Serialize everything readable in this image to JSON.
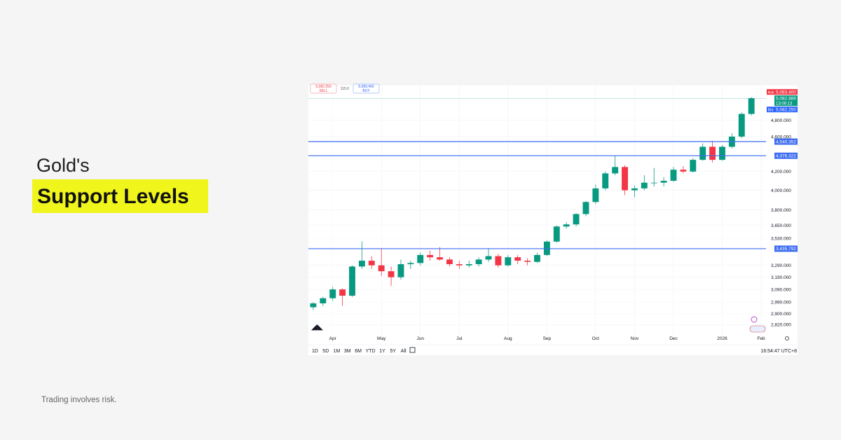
{
  "headline": {
    "line1": "Gold's",
    "line2": "Support Levels"
  },
  "disclaimer": "Trading involves risk.",
  "trade_panel": {
    "sell_price": "5,082.250",
    "sell": "SELL",
    "spread": "115.0",
    "buy_price": "5,083.400",
    "buy": "BUY"
  },
  "toolbar": {
    "ranges": [
      "1D",
      "5D",
      "1M",
      "3M",
      "6M",
      "YTD",
      "1Y",
      "5Y",
      "All"
    ],
    "clock": "16:54:47 UTC+8"
  },
  "chart_data": {
    "type": "candlestick",
    "categories": [
      null,
      null,
      "Apr",
      null,
      null,
      null,
      null,
      "May",
      null,
      null,
      null,
      "Jun",
      null,
      null,
      null,
      "Jul",
      null,
      null,
      null,
      null,
      "Aug",
      null,
      null,
      null,
      "Sep",
      null,
      null,
      null,
      null,
      "Oct",
      null,
      null,
      null,
      "Nov",
      null,
      null,
      null,
      "Dec",
      null,
      null,
      null,
      null,
      "2026",
      null,
      null,
      null,
      "Feb"
    ],
    "open": [
      2950,
      2980,
      3020,
      3090,
      3040,
      3280,
      3330,
      3290,
      3240,
      3190,
      3300,
      3310,
      3380,
      3360,
      3340,
      3300,
      3290,
      3300,
      3340,
      3370,
      3290,
      3360,
      3330,
      3320,
      3380,
      3500,
      3640,
      3660,
      3760,
      3880,
      4020,
      4180,
      4250,
      4000,
      4020,
      4080,
      4080,
      4100,
      4220,
      4200,
      4330,
      4480,
      4330,
      4480,
      4600,
      4880,
      null
    ],
    "high": [
      2990,
      3030,
      3110,
      3100,
      3290,
      3500,
      3370,
      3440,
      3280,
      3340,
      3330,
      3400,
      3420,
      3450,
      3360,
      3330,
      3330,
      3360,
      3440,
      3390,
      3380,
      3380,
      3350,
      3400,
      3510,
      3650,
      3680,
      3770,
      3890,
      4060,
      4200,
      4380,
      4270,
      4050,
      4160,
      4240,
      4140,
      4250,
      4260,
      4350,
      4520,
      4550,
      4500,
      4640,
      4900,
      5100,
      null
    ],
    "low": [
      2930,
      2960,
      3000,
      2960,
      3030,
      3260,
      3260,
      3200,
      3120,
      3170,
      3260,
      3290,
      3330,
      3330,
      3280,
      3260,
      3270,
      3280,
      3320,
      3270,
      3280,
      3300,
      3290,
      3310,
      3370,
      3490,
      3620,
      3640,
      3740,
      3860,
      4000,
      4160,
      3950,
      3930,
      4000,
      4040,
      4040,
      4090,
      4180,
      4190,
      4320,
      4300,
      4320,
      4460,
      4580,
      4860,
      null
    ],
    "close": [
      2980,
      3020,
      3090,
      3040,
      3280,
      3330,
      3290,
      3240,
      3190,
      3300,
      3310,
      3380,
      3360,
      3340,
      3300,
      3290,
      3300,
      3340,
      3370,
      3290,
      3360,
      3330,
      3320,
      3380,
      3500,
      3640,
      3660,
      3760,
      3880,
      4020,
      4180,
      4250,
      4000,
      4020,
      4080,
      4080,
      4100,
      4220,
      4200,
      4330,
      4480,
      4330,
      4480,
      4600,
      4880,
      5083,
      null
    ],
    "up_color": "#089981",
    "down_color": "#f23645",
    "log_scale": true,
    "grid": true,
    "ylim": [
      2735,
      5255
    ],
    "yticks": [
      {
        "value": 2820,
        "label": "2,820.000"
      },
      {
        "value": 2900,
        "label": "2,900.000"
      },
      {
        "value": 2990,
        "label": "2,990.000"
      },
      {
        "value": 3090,
        "label": "3,090.000"
      },
      {
        "value": 3190,
        "label": "3,190.000"
      },
      {
        "value": 3290,
        "label": "3,290.000"
      },
      {
        "value": 3530,
        "label": "3,530.000"
      },
      {
        "value": 3650,
        "label": "3,650.000"
      },
      {
        "value": 3800,
        "label": "3,800.000"
      },
      {
        "value": 4000,
        "label": "4,000.000"
      },
      {
        "value": 4200,
        "label": "4,200.000"
      },
      {
        "value": 4600,
        "label": "4,600.000"
      },
      {
        "value": 4800,
        "label": "4,800.000"
      }
    ],
    "levels": [
      {
        "value": 4540.352,
        "label": "4,540.352"
      },
      {
        "value": 4376.322,
        "label": "4,376.322"
      },
      {
        "value": 3435.792,
        "label": "3,435.792"
      }
    ],
    "level_color": "#3d6cf0",
    "ask": {
      "name": "Ask",
      "value": 5083.4,
      "label": "5,083.400"
    },
    "last": {
      "value": 5082.889,
      "label": "5,082.889",
      "timer": "13:09:13"
    },
    "bid": {
      "name": "Bid",
      "value": 5082.25,
      "label": "5,082.250"
    }
  }
}
